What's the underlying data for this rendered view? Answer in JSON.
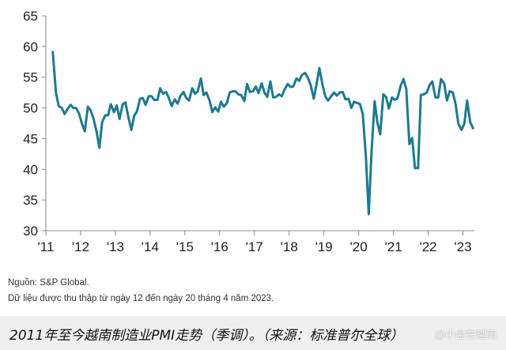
{
  "chart_data": {
    "type": "line",
    "title": "",
    "xlabel": "",
    "ylabel": "",
    "ylim": [
      30,
      65
    ],
    "xlim": [
      2011,
      2023.33
    ],
    "y_ticks": [
      30,
      35,
      40,
      45,
      50,
      55,
      60,
      65
    ],
    "x_ticks": [
      {
        "x": 2011,
        "label": "'11"
      },
      {
        "x": 2012,
        "label": "'12"
      },
      {
        "x": 2013,
        "label": "'13"
      },
      {
        "x": 2014,
        "label": "'14"
      },
      {
        "x": 2015,
        "label": "'15"
      },
      {
        "x": 2016,
        "label": "'16"
      },
      {
        "x": 2017,
        "label": "'17"
      },
      {
        "x": 2018,
        "label": "'18"
      },
      {
        "x": 2019,
        "label": "'19"
      },
      {
        "x": 2020,
        "label": "'20"
      },
      {
        "x": 2021,
        "label": "'21"
      },
      {
        "x": 2022,
        "label": "'22"
      },
      {
        "x": 2023,
        "label": "'23"
      }
    ],
    "grid": false,
    "line_color": "#1d7a91",
    "series": [
      {
        "x": [
          2011.2,
          2011.29,
          2011.37,
          2011.46,
          2011.54,
          2011.62,
          2011.71,
          2011.79,
          2011.87,
          2011.96,
          2012.04,
          2012.12,
          2012.21,
          2012.29,
          2012.37,
          2012.46,
          2012.54,
          2012.62,
          2012.71,
          2012.79,
          2012.87,
          2012.96,
          2013.04,
          2013.12,
          2013.21,
          2013.29,
          2013.37,
          2013.46,
          2013.54,
          2013.62,
          2013.71,
          2013.79,
          2013.87,
          2013.96,
          2014.04,
          2014.12,
          2014.21,
          2014.29,
          2014.37,
          2014.46,
          2014.54,
          2014.62,
          2014.71,
          2014.79,
          2014.87,
          2014.96,
          2015.04,
          2015.12,
          2015.21,
          2015.29,
          2015.37,
          2015.46,
          2015.54,
          2015.62,
          2015.71,
          2015.79,
          2015.87,
          2015.96,
          2016.04,
          2016.12,
          2016.21,
          2016.29,
          2016.37,
          2016.46,
          2016.54,
          2016.62,
          2016.71,
          2016.79,
          2016.87,
          2016.96,
          2017.04,
          2017.12,
          2017.21,
          2017.29,
          2017.37,
          2017.46,
          2017.54,
          2017.62,
          2017.71,
          2017.79,
          2017.87,
          2017.96,
          2018.04,
          2018.12,
          2018.21,
          2018.29,
          2018.37,
          2018.46,
          2018.54,
          2018.62,
          2018.71,
          2018.79,
          2018.87,
          2018.96,
          2019.04,
          2019.12,
          2019.21,
          2019.29,
          2019.37,
          2019.46,
          2019.54,
          2019.62,
          2019.71,
          2019.79,
          2019.87,
          2019.96,
          2020.04,
          2020.12,
          2020.21,
          2020.29,
          2020.37,
          2020.46,
          2020.54,
          2020.62,
          2020.71,
          2020.79,
          2020.87,
          2020.96,
          2021.04,
          2021.12,
          2021.21,
          2021.29,
          2021.37,
          2021.46,
          2021.54,
          2021.62,
          2021.71,
          2021.79,
          2021.87,
          2021.96,
          2022.04,
          2022.12,
          2022.21,
          2022.29,
          2022.37,
          2022.46,
          2022.54,
          2022.62,
          2022.71,
          2022.79,
          2022.87,
          2022.96,
          2023.04,
          2023.12,
          2023.21,
          2023.29
        ],
        "values": [
          59.1,
          52.5,
          50.3,
          50.0,
          49.0,
          49.8,
          50.5,
          50.0,
          50.0,
          49.0,
          47.4,
          46.2,
          50.2,
          49.6,
          48.3,
          46.1,
          43.5,
          47.7,
          48.8,
          48.8,
          50.6,
          49.3,
          50.4,
          48.2,
          50.6,
          50.9,
          48.6,
          46.4,
          48.7,
          49.4,
          51.5,
          51.6,
          50.5,
          51.9,
          51.9,
          51.3,
          51.3,
          53.2,
          52.3,
          52.6,
          51.6,
          50.3,
          51.4,
          50.7,
          51.9,
          52.6,
          51.6,
          51.2,
          53.2,
          52.3,
          52.7,
          54.8,
          52.1,
          52.5,
          51.2,
          49.3,
          50.1,
          49.4,
          51.0,
          50.2,
          50.8,
          52.5,
          52.7,
          52.7,
          52.2,
          52.1,
          51.1,
          53.9,
          52.6,
          52.7,
          53.5,
          52.4,
          54.0,
          52.5,
          51.8,
          54.3,
          51.7,
          51.8,
          52.2,
          51.9,
          53.0,
          53.9,
          53.4,
          53.5,
          54.8,
          54.4,
          55.4,
          55.7,
          54.9,
          53.7,
          51.5,
          53.9,
          56.5,
          53.8,
          51.9,
          51.2,
          51.9,
          52.5,
          52.0,
          52.5,
          52.6,
          51.4,
          51.5,
          50.0,
          51.0,
          50.8,
          50.6,
          49.0,
          41.9,
          32.7,
          42.7,
          51.1,
          47.6,
          45.7,
          52.2,
          51.8,
          49.9,
          51.7,
          51.3,
          51.6,
          53.6,
          54.7,
          53.1,
          44.1,
          45.1,
          40.2,
          40.2,
          52.1,
          52.2,
          52.5,
          53.7,
          54.3,
          51.7,
          51.7,
          54.7,
          54.0,
          51.2,
          52.7,
          52.5,
          50.6,
          47.4,
          46.4,
          47.4,
          51.2,
          47.7,
          46.7
        ]
      }
    ]
  },
  "source": {
    "line1": "Nguồn: S&P Global.",
    "line2": "Dữ liệu được thu thập từ ngày 12 đến ngày 20 tháng 4 năm 2023."
  },
  "caption": "2011年至今越南制造业PMI走势（季调）。（来源：标准普尔全球）",
  "watermark": "@小金在越南"
}
